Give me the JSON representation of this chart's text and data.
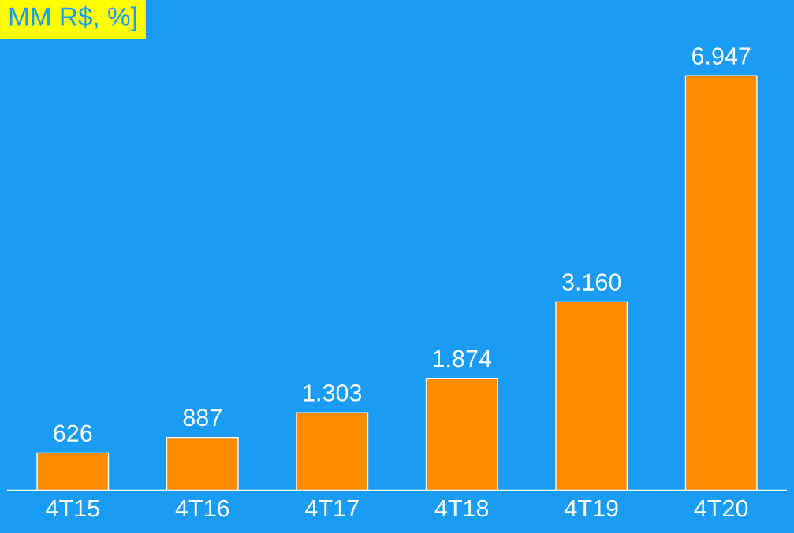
{
  "chart_data": {
    "type": "bar",
    "title": "MM R$, %]",
    "categories": [
      "4T15",
      "4T16",
      "4T17",
      "4T18",
      "4T19",
      "4T20"
    ],
    "values": [
      626,
      887,
      1303,
      1874,
      3160,
      6947
    ],
    "value_labels": [
      "626",
      "887",
      "1.303",
      "1.874",
      "3.160",
      "6.947"
    ],
    "color": "#ff8c00",
    "grid": false,
    "legend": false
  }
}
